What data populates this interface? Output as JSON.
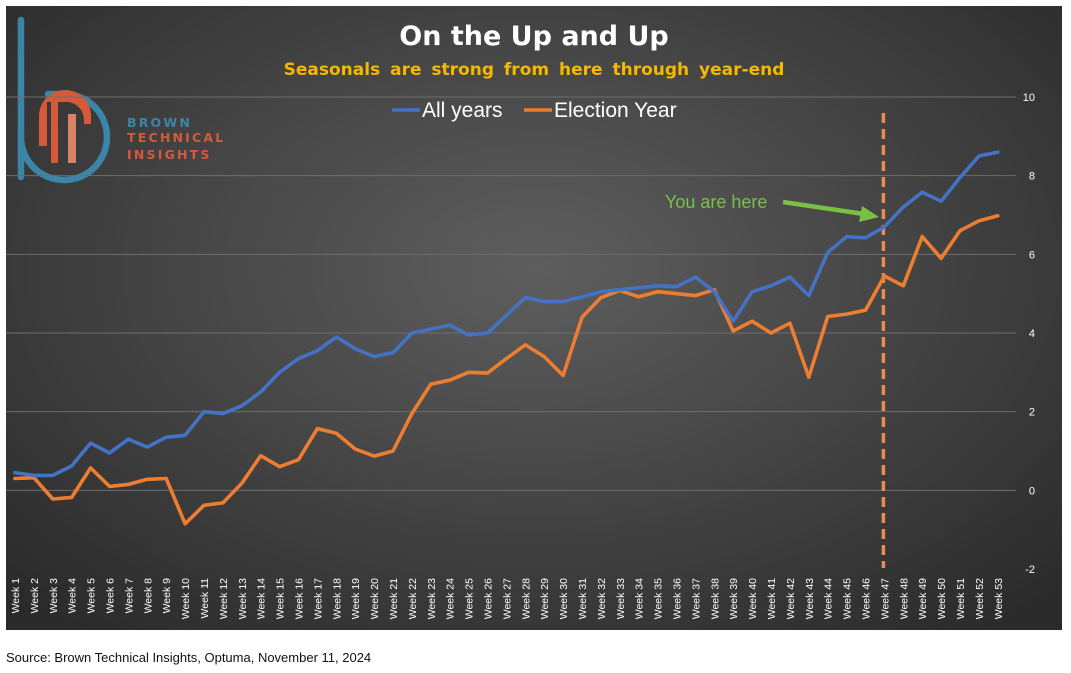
{
  "logo": {
    "line1": "BROWN",
    "line2": "TECHNICAL",
    "line3": "INSIGHTS",
    "color_blue": "#3b86a8",
    "color_red": "#d65a3a"
  },
  "source": "Source: Brown Technical Insights, Optuma, November 11, 2024",
  "chart_data": {
    "type": "line",
    "title": "On the Up and Up",
    "subtitle": "Seasonals are strong from here through year-end",
    "xlabel": "",
    "ylabel": "",
    "ylim": [
      -2,
      10
    ],
    "yticks": [
      "-2",
      "0",
      "2",
      "4",
      "6",
      "8",
      "10"
    ],
    "grid": true,
    "legend_position": "top-center",
    "categories": [
      "Week 1",
      "Week 2",
      "Week 3",
      "Week 4",
      "Week 5",
      "Week 6",
      "Week 7",
      "Week 8",
      "Week 9",
      "Week 10",
      "Week 11",
      "Week 12",
      "Week 13",
      "Week 14",
      "Week 15",
      "Week 16",
      "Week 17",
      "Week 18",
      "Week 19",
      "Week 20",
      "Week 21",
      "Week 22",
      "Week 23",
      "Week 24",
      "Week 25",
      "Week 26",
      "Week 27",
      "Week 28",
      "Week 29",
      "Week 30",
      "Week 31",
      "Week 32",
      "Week 33",
      "Week 34",
      "Week 35",
      "Week 36",
      "Week 37",
      "Week 38",
      "Week 39",
      "Week 40",
      "Week 41",
      "Week 42",
      "Week 43",
      "Week 44",
      "Week 45",
      "Week 46",
      "Week 47",
      "Week 48",
      "Week 49",
      "Week 50",
      "Week 51",
      "Week 52",
      "Week 53"
    ],
    "series": [
      {
        "name": "All years",
        "color": "#4472c4",
        "values": [
          0.45,
          0.38,
          0.38,
          0.62,
          1.2,
          0.95,
          1.3,
          1.1,
          1.35,
          1.4,
          2.0,
          1.95,
          2.15,
          2.5,
          3.0,
          3.35,
          3.55,
          3.9,
          3.6,
          3.4,
          3.5,
          4.0,
          4.1,
          4.2,
          3.95,
          4.0,
          4.45,
          4.9,
          4.8,
          4.8,
          4.92,
          5.05,
          5.1,
          5.15,
          5.2,
          5.18,
          5.42,
          5.05,
          4.3,
          5.05,
          5.2,
          5.42,
          4.95,
          6.05,
          6.45,
          6.42,
          6.7,
          7.2,
          7.58,
          7.35,
          7.95,
          8.5,
          8.6
        ]
      },
      {
        "name": "Election Year",
        "color": "#ed7d31",
        "values": [
          0.3,
          0.32,
          -0.22,
          -0.18,
          0.57,
          0.1,
          0.15,
          0.28,
          0.3,
          -0.85,
          -0.38,
          -0.32,
          0.18,
          0.88,
          0.6,
          0.78,
          1.57,
          1.45,
          1.05,
          0.87,
          1.0,
          1.95,
          2.7,
          2.8,
          3.0,
          2.98,
          3.35,
          3.7,
          3.4,
          2.92,
          4.4,
          4.9,
          5.08,
          4.92,
          5.05,
          5.0,
          4.95,
          5.1,
          4.05,
          4.3,
          4.0,
          4.25,
          2.88,
          4.42,
          4.48,
          4.58,
          5.45,
          5.2,
          6.45,
          5.9,
          6.6,
          6.85,
          6.98
        ]
      }
    ],
    "vline": {
      "category": "Week 47",
      "color": "#f0875a",
      "style": "dashed"
    },
    "annotation": {
      "text": "You are here",
      "color": "#7ac143",
      "target_category": "Week 47"
    }
  }
}
